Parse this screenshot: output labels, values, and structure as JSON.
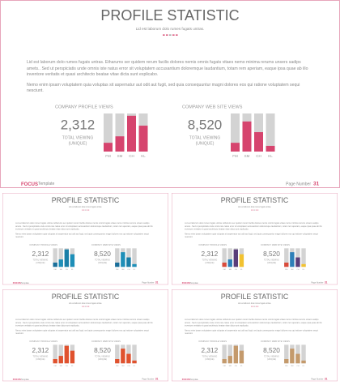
{
  "slide": {
    "title": "PROFILE STATISTIC",
    "subtitle": "Lid est laborum dolo rumes fugats untras.",
    "paragraphs": [
      "Lid est laborum dolo rumes fugats untras. Etharums ser quidem rerum facilis dolores nemis omnis fugats vitaes nemo minima rerums unsers sadips amets.. Sed ut perspiciatis unde omnis iste natus error sit voluptatem accusantium doloremque laudantium, totam rem aperiam, eaque ipsa quae ab illo inventore veritatis et quasi architecto beatae vitae dicta sunt explicabo.",
      "Nemo enim ipsam voluptatem quia voluptas sit aspernatur aut odit aut fugit, sed quia consequuntur magni dolores eos qui ratione voluptatem sequi nesciunt."
    ],
    "widgets": [
      {
        "label": "COMPANY PROFILE VIEWS",
        "number": "2,312",
        "caption": [
          "TOTAL VIEWING",
          "(UNIQUE)"
        ],
        "categories": [
          "FM",
          "SM",
          "CH",
          "KL"
        ],
        "values": [
          23,
          40,
          94,
          68
        ]
      },
      {
        "label": "COMPANY WEB SITE VIEWS",
        "number": "8,520",
        "caption": [
          "TOTAL VIEWING",
          "(UNIQUE)"
        ],
        "categories": [
          "FM",
          "SM",
          "CH",
          "KL"
        ],
        "values": [
          23,
          79,
          51,
          15
        ]
      }
    ],
    "ylim": [
      0,
      100
    ],
    "footer": {
      "brand": "FOCUS",
      "brand_suffix": "Template",
      "page_label": "Page Number",
      "page_number": 31
    },
    "color": "#d6446e"
  },
  "thumbnails": [
    {
      "colors": [
        "#1a6f9a",
        "#1e8fb8",
        "#1a7fa8",
        "#1e8fb8"
      ]
    },
    {
      "colors": [
        "#d94c3c",
        "#2d7fb8",
        "#5a3d7a",
        "#f2c230"
      ]
    },
    {
      "colors": [
        "#e0522e",
        "#e0522e",
        "#e0522e",
        "#e0522e"
      ]
    },
    {
      "colors": [
        "#c49a6c",
        "#c49a6c",
        "#c49a6c",
        "#c49a6c"
      ]
    }
  ]
}
